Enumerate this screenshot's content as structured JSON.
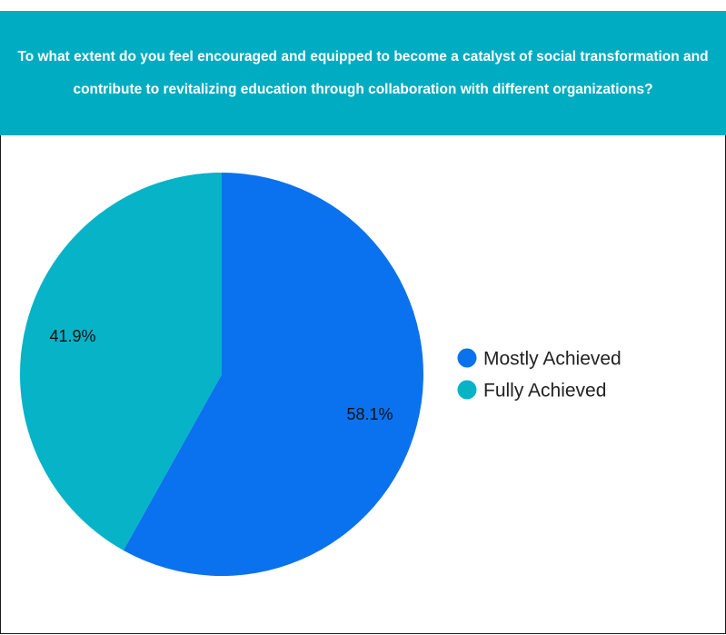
{
  "chart_data": {
    "type": "pie",
    "title": "To what extent do you feel encouraged and equipped to become a catalyst of social transformation and contribute to revitalizing education through collaboration with different organizations?",
    "series": [
      {
        "name": "Mostly Achieved",
        "value": 58.1,
        "label": "58.1%",
        "color": "#0a72ee"
      },
      {
        "name": "Fully Achieved",
        "value": 41.9,
        "label": "41.9%",
        "color": "#06b3c7"
      }
    ],
    "start_angle": "12 o'clock",
    "direction": "clockwise",
    "legend_position": "right"
  },
  "colors": {
    "header_background": "#00acc1",
    "header_text": "#ffffff"
  }
}
